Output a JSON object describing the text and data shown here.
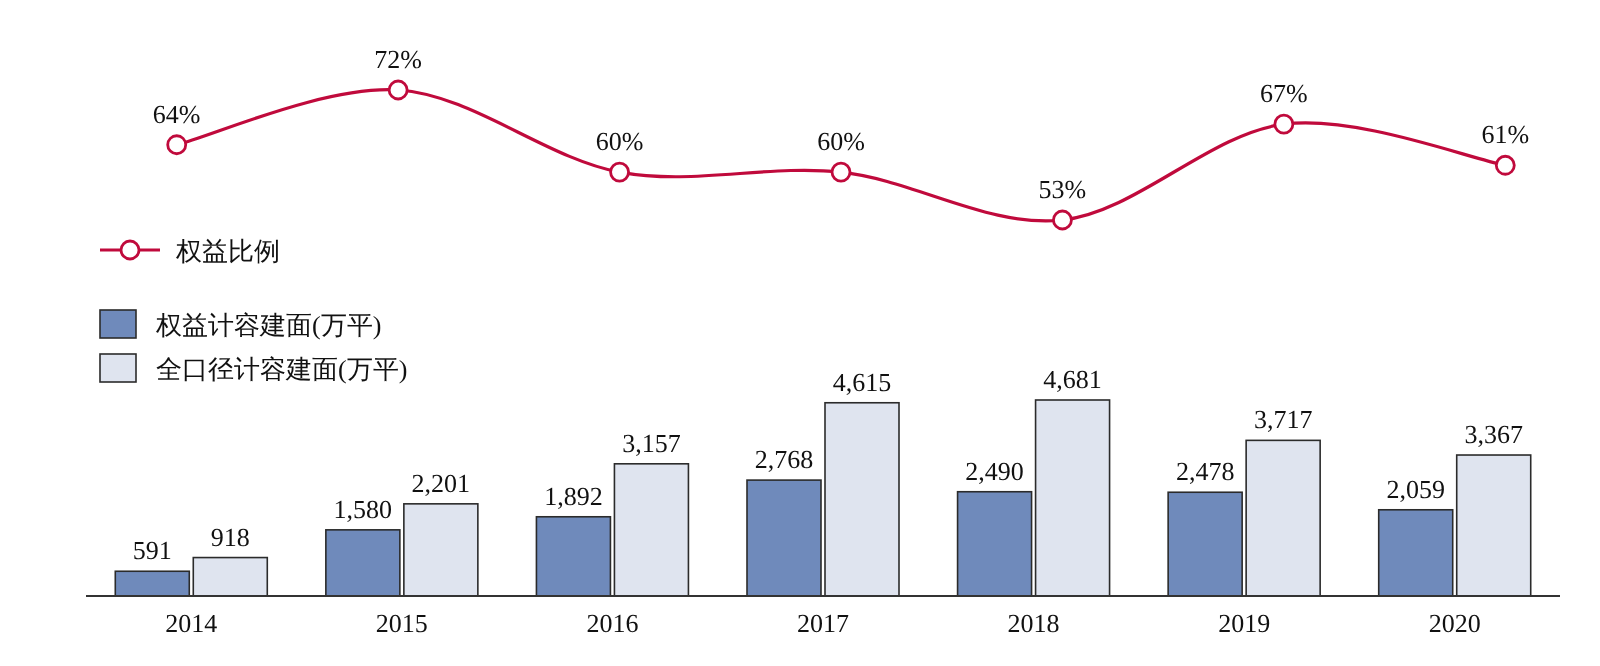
{
  "chart_data": [
    {
      "type": "line",
      "categories": [
        null,
        null,
        null,
        null,
        null,
        null,
        null
      ],
      "marker": "circle",
      "data_labels": true,
      "legend": "bottom left",
      "series": [
        {
          "name": "权益比例",
          "color": "#c00a3c",
          "values": [
            64,
            72,
            60,
            60,
            53,
            67,
            61
          ],
          "value_labels": [
            "64%",
            "72%",
            "60%",
            "60%",
            "53%",
            "67%",
            "61%"
          ]
        }
      ]
    },
    {
      "type": "bar",
      "categories": [
        "2014",
        "2015",
        "2016",
        "2017",
        "2018",
        "2019",
        "2020"
      ],
      "legend": "top left",
      "data_labels": true,
      "series": [
        {
          "name": "权益计容建面(万平)",
          "color": "#6f8abb",
          "values": [
            591,
            1580,
            1892,
            2768,
            2490,
            2478,
            2059
          ],
          "value_labels": [
            "591",
            "1,580",
            "1,892",
            "2,768",
            "2,490",
            "2,478",
            "2,059"
          ]
        },
        {
          "name": "全口径计容建面(万平)",
          "color": "#dfe4ef",
          "values": [
            918,
            2201,
            3157,
            4615,
            4681,
            3717,
            3367
          ],
          "value_labels": [
            "918",
            "2,201",
            "3,157",
            "4,615",
            "4,681",
            "3,717",
            "3,367"
          ]
        }
      ]
    }
  ]
}
